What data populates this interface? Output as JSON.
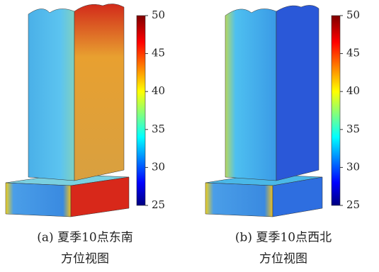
{
  "panels": [
    {
      "caption_line1": "(a) 夏季10点东南",
      "caption_line2": "方位视图",
      "colorbar": {
        "lim": [
          25,
          50
        ],
        "ticks": [
          25,
          30,
          35,
          40,
          45,
          50
        ]
      }
    },
    {
      "caption_line1": "(b) 夏季10点西北",
      "caption_line2": "方位视图",
      "colorbar": {
        "lim": [
          25,
          50
        ],
        "ticks": [
          25,
          30,
          35,
          40,
          45,
          50
        ]
      }
    }
  ]
}
